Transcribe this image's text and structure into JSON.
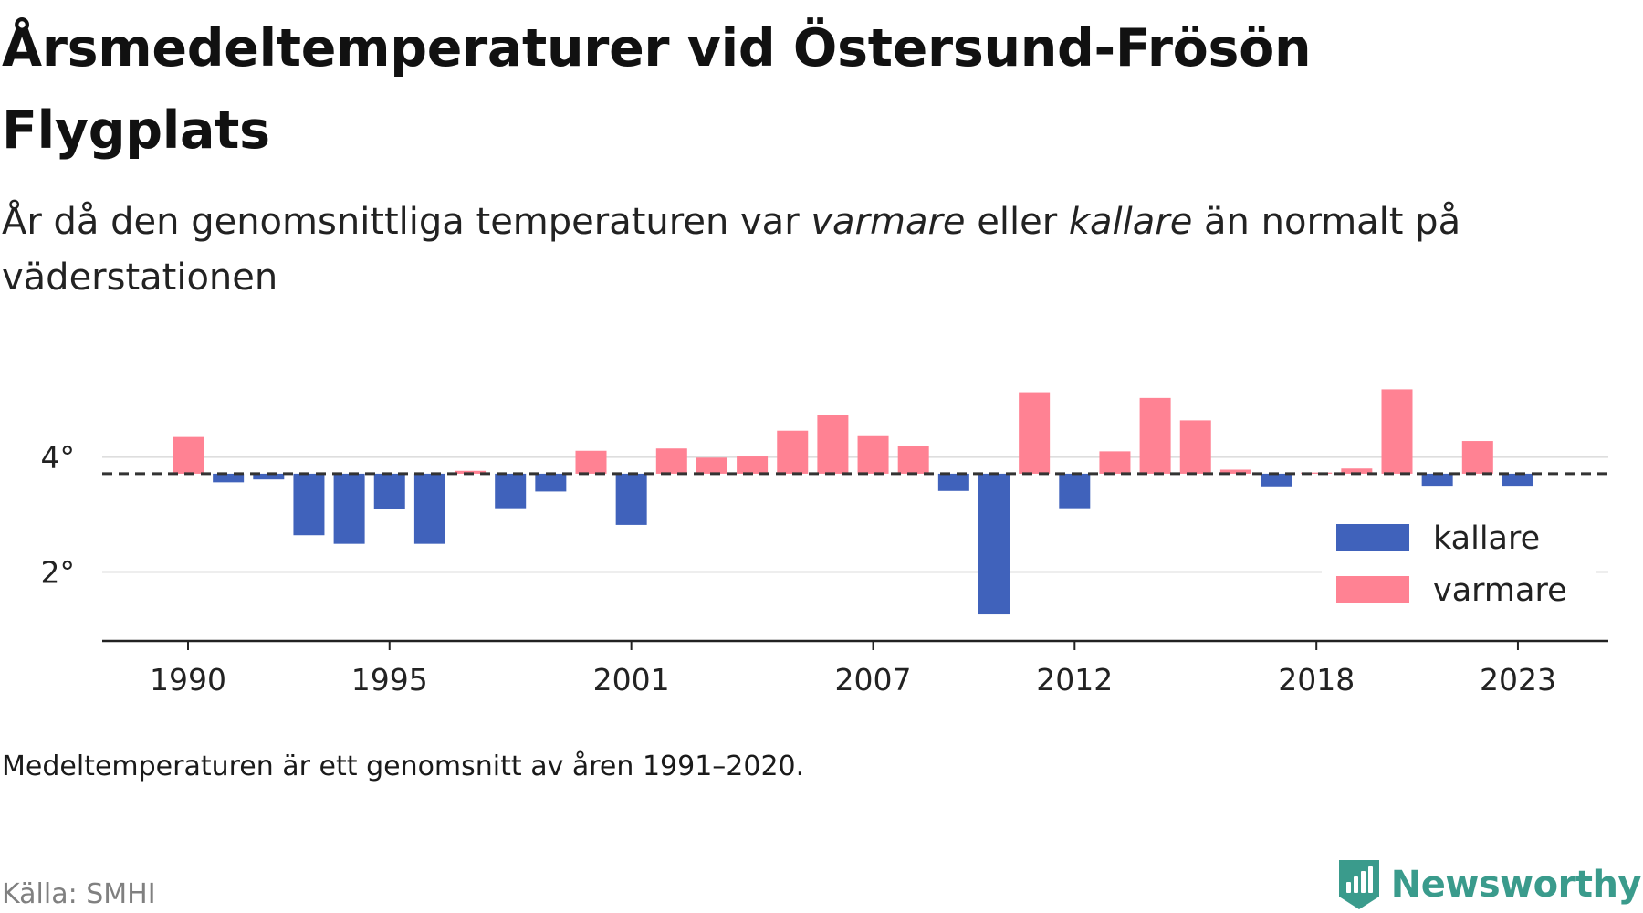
{
  "title": "Årsmedeltemperaturer vid Östersund-Frösön Flygplats",
  "subtitle": {
    "part1": "År då den genomsnittliga temperaturen var ",
    "warm_word": "varmare",
    "part2": " eller ",
    "cold_word": "kallare",
    "part3": " än normalt på väderstationen"
  },
  "note": "Medeltemperaturen är ett genomsnitt av åren 1991–2020.",
  "source": "Källa: SMHI",
  "brand": {
    "name": "Newsworthy",
    "icon": "newsworthy-logo-icon",
    "color": "#3a9b8c"
  },
  "chart_data": {
    "type": "bar",
    "baseline": 3.71,
    "ylim": [
      0.8,
      5.6
    ],
    "y_ticks": [
      {
        "value": 2,
        "label": "2°"
      },
      {
        "value": 4,
        "label": "4°"
      }
    ],
    "x_ticks": [
      1990,
      1995,
      2001,
      2007,
      2012,
      2018,
      2023
    ],
    "legend": [
      {
        "name": "kallare",
        "color": "#4062bb"
      },
      {
        "name": "varmare",
        "color": "#ff8293"
      }
    ],
    "legend_position": "bottom-right",
    "colors": {
      "colder": "#4062bb",
      "warmer": "#ff8293",
      "colder_faded": "#ccd7ee"
    },
    "grid": true,
    "series": [
      {
        "name": "Årsmedeltemperatur",
        "x": [
          1990,
          1991,
          1992,
          1993,
          1994,
          1995,
          1996,
          1997,
          1998,
          1999,
          2000,
          2001,
          2002,
          2003,
          2004,
          2005,
          2006,
          2007,
          2008,
          2009,
          2010,
          2011,
          2012,
          2013,
          2014,
          2015,
          2016,
          2017,
          2018,
          2019,
          2020,
          2021,
          2022,
          2023
        ],
        "values": [
          4.35,
          3.56,
          3.61,
          2.64,
          2.49,
          3.1,
          2.49,
          3.76,
          3.11,
          3.4,
          4.11,
          2.82,
          4.15,
          3.99,
          4.01,
          4.46,
          4.73,
          4.38,
          4.2,
          3.41,
          1.26,
          5.13,
          3.11,
          4.1,
          5.03,
          4.64,
          3.78,
          3.49,
          3.73,
          3.8,
          5.18,
          3.5,
          4.28,
          3.5
        ]
      }
    ]
  }
}
